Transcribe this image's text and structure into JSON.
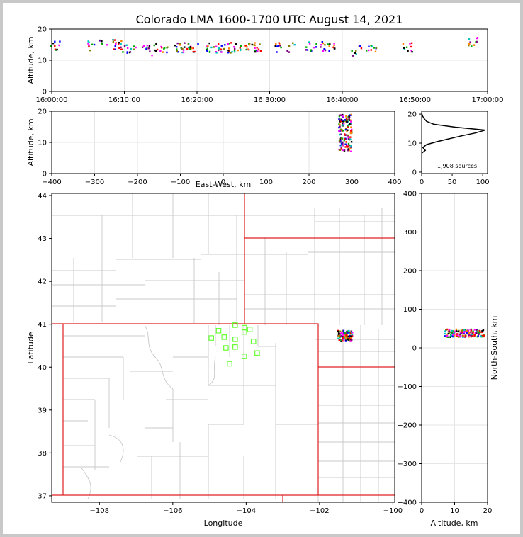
{
  "chart_data": [
    {
      "id": "time-height",
      "type": "scatter",
      "title": "Colorado LMA 1600-1700 UTC August 14, 2021",
      "xlabel": "",
      "ylabel": "Altitude, km",
      "xticks": [
        "16:00:00",
        "16:10:00",
        "16:20:00",
        "16:30:00",
        "16:40:00",
        "16:50:00",
        "17:00:00"
      ],
      "xlim_minutes": [
        0,
        60
      ],
      "yticks": [
        0,
        10,
        20
      ],
      "ylim": [
        0,
        20
      ],
      "grid": true,
      "clusters_minutes_altitude": [
        {
          "x": 0.5,
          "y": 14.5
        },
        {
          "x": 5.5,
          "y": 14.5
        },
        {
          "x": 7,
          "y": 15.5
        },
        {
          "x": 9,
          "y": 15
        },
        {
          "x": 10,
          "y": 13.5
        },
        {
          "x": 11,
          "y": 14
        },
        {
          "x": 12.5,
          "y": 13.5
        },
        {
          "x": 13.5,
          "y": 13
        },
        {
          "x": 14.5,
          "y": 14
        },
        {
          "x": 16,
          "y": 14
        },
        {
          "x": 17.5,
          "y": 14
        },
        {
          "x": 18.5,
          "y": 14
        },
        {
          "x": 19.5,
          "y": 14
        },
        {
          "x": 22,
          "y": 14
        },
        {
          "x": 23,
          "y": 14
        },
        {
          "x": 24,
          "y": 14
        },
        {
          "x": 25,
          "y": 14
        },
        {
          "x": 26.5,
          "y": 14
        },
        {
          "x": 27.5,
          "y": 14
        },
        {
          "x": 28.5,
          "y": 14
        },
        {
          "x": 31,
          "y": 14
        },
        {
          "x": 33,
          "y": 14
        },
        {
          "x": 35.5,
          "y": 14.5
        },
        {
          "x": 37,
          "y": 14.5
        },
        {
          "x": 38.5,
          "y": 14
        },
        {
          "x": 42,
          "y": 13
        },
        {
          "x": 44,
          "y": 14
        },
        {
          "x": 49,
          "y": 14
        },
        {
          "x": 58,
          "y": 16
        }
      ]
    },
    {
      "id": "east-west-altitude",
      "type": "scatter",
      "xlabel": "East-West, km",
      "ylabel": "Altitude, km",
      "xticks": [
        -400,
        -300,
        -200,
        -100,
        0,
        100,
        200,
        300,
        400
      ],
      "xlim": [
        -400,
        400
      ],
      "yticks": [
        0,
        10,
        20
      ],
      "ylim": [
        0,
        20
      ],
      "grid": true,
      "cluster": {
        "x_range": [
          270,
          300
        ],
        "y_range": [
          7,
          19
        ]
      }
    },
    {
      "id": "altitude-histogram",
      "type": "line",
      "xticks": [
        0,
        50,
        100
      ],
      "xlim": [
        0,
        108
      ],
      "yticks": [
        0,
        10,
        20
      ],
      "ylim": [
        -0.5,
        21
      ],
      "annotation": "1,908 sources",
      "profile": [
        {
          "alt": 6.5,
          "count": 0
        },
        {
          "alt": 7.5,
          "count": 6
        },
        {
          "alt": 8.5,
          "count": 2
        },
        {
          "alt": 9.5,
          "count": 8
        },
        {
          "alt": 10.5,
          "count": 25
        },
        {
          "alt": 11.5,
          "count": 45
        },
        {
          "alt": 12.5,
          "count": 65
        },
        {
          "alt": 13.5,
          "count": 88
        },
        {
          "alt": 14.5,
          "count": 104
        },
        {
          "alt": 15.5,
          "count": 55
        },
        {
          "alt": 16.5,
          "count": 20
        },
        {
          "alt": 17.5,
          "count": 8
        },
        {
          "alt": 18.5,
          "count": 4
        },
        {
          "alt": 19.5,
          "count": 1
        },
        {
          "alt": 20.5,
          "count": 0
        }
      ]
    },
    {
      "id": "map",
      "type": "scatter",
      "xlabel": "Longitude",
      "ylabel": "Latitude",
      "xticks": [
        -108,
        -106,
        -104,
        -102,
        -100
      ],
      "xlim": [
        -109.3,
        -99.95
      ],
      "yticks": [
        37,
        38,
        39,
        40,
        41,
        42,
        43,
        44
      ],
      "ylim": [
        36.85,
        44.05
      ],
      "stations_lon_lat": [
        [
          -104.75,
          40.85
        ],
        [
          -104.95,
          40.68
        ],
        [
          -104.6,
          40.7
        ],
        [
          -104.3,
          40.98
        ],
        [
          -104.05,
          40.92
        ],
        [
          -104.05,
          40.82
        ],
        [
          -103.9,
          40.88
        ],
        [
          -104.55,
          40.45
        ],
        [
          -104.3,
          40.47
        ],
        [
          -104.3,
          40.65
        ],
        [
          -103.8,
          40.6
        ],
        [
          -103.7,
          40.33
        ],
        [
          -104.05,
          40.25
        ],
        [
          -104.45,
          40.08
        ]
      ],
      "cluster": {
        "lon_range": [
          -101.5,
          -101.1
        ],
        "lat_range": [
          40.6,
          40.85
        ]
      }
    },
    {
      "id": "altitude-north-south",
      "type": "scatter",
      "xlabel": "Altitude, km",
      "ylabel": "North-South, km",
      "xticks": [
        0,
        10,
        20
      ],
      "xlim": [
        0,
        20
      ],
      "yticks": [
        -400,
        -300,
        -200,
        -100,
        0,
        100,
        200,
        300,
        400
      ],
      "ylim": [
        -400,
        400
      ],
      "grid": true,
      "cluster": {
        "x_range": [
          7,
          19
        ],
        "y_range": [
          28,
          48
        ]
      }
    }
  ]
}
